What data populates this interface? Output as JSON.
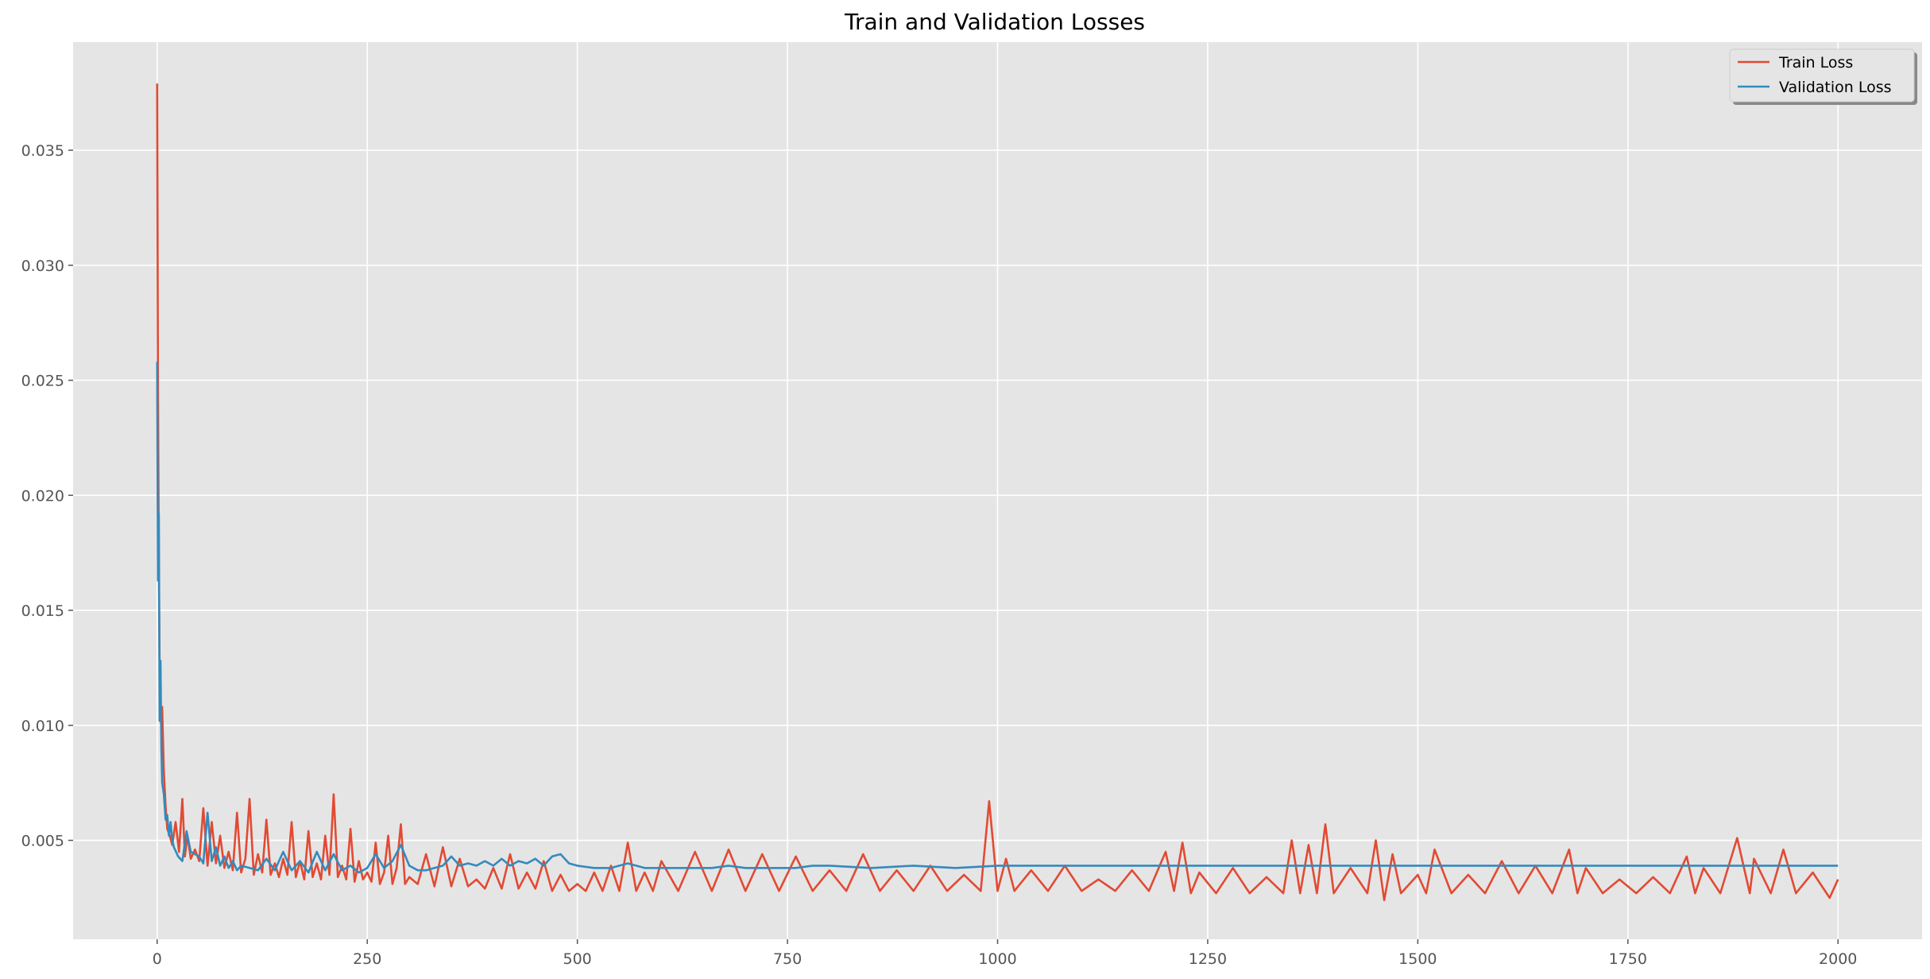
{
  "chart_data": {
    "type": "line",
    "title": "Train and Validation Losses",
    "xlabel": "",
    "ylabel": "",
    "xlim": [
      -100,
      2100
    ],
    "ylim": [
      0.0007,
      0.0397
    ],
    "x_ticks": [
      0,
      250,
      500,
      750,
      1000,
      1250,
      1500,
      1750,
      2000
    ],
    "x_tick_labels": [
      "0",
      "250",
      "500",
      "750",
      "1000",
      "1250",
      "1500",
      "1750",
      "2000"
    ],
    "y_ticks": [
      0.005,
      0.01,
      0.015,
      0.02,
      0.025,
      0.03,
      0.035
    ],
    "y_tick_labels": [
      "0.005",
      "0.010",
      "0.015",
      "0.020",
      "0.025",
      "0.030",
      "0.035"
    ],
    "grid": true,
    "legend_position": "top-right",
    "series": [
      {
        "name": "Train Loss",
        "color": "#E24A33",
        "x": [
          0,
          1,
          2,
          3,
          4,
          5,
          6,
          8,
          10,
          12,
          15,
          18,
          22,
          26,
          30,
          33,
          36,
          40,
          45,
          50,
          55,
          60,
          65,
          70,
          75,
          80,
          85,
          90,
          95,
          100,
          105,
          110,
          115,
          120,
          125,
          130,
          135,
          140,
          145,
          150,
          155,
          160,
          165,
          170,
          175,
          180,
          185,
          190,
          195,
          200,
          205,
          210,
          215,
          220,
          225,
          230,
          235,
          240,
          245,
          250,
          255,
          260,
          265,
          270,
          275,
          280,
          285,
          290,
          295,
          300,
          310,
          320,
          330,
          340,
          350,
          360,
          370,
          380,
          390,
          400,
          410,
          420,
          430,
          440,
          450,
          460,
          470,
          480,
          490,
          500,
          510,
          520,
          530,
          540,
          550,
          560,
          570,
          580,
          590,
          600,
          620,
          640,
          660,
          680,
          700,
          720,
          740,
          760,
          780,
          800,
          820,
          840,
          860,
          880,
          900,
          920,
          940,
          960,
          980,
          990,
          1000,
          1010,
          1020,
          1040,
          1060,
          1080,
          1100,
          1120,
          1140,
          1160,
          1180,
          1200,
          1210,
          1220,
          1230,
          1240,
          1260,
          1280,
          1300,
          1320,
          1340,
          1350,
          1360,
          1370,
          1380,
          1390,
          1400,
          1420,
          1440,
          1450,
          1460,
          1470,
          1480,
          1500,
          1510,
          1520,
          1540,
          1560,
          1580,
          1600,
          1620,
          1640,
          1660,
          1680,
          1690,
          1700,
          1720,
          1740,
          1760,
          1780,
          1800,
          1820,
          1830,
          1840,
          1860,
          1880,
          1895,
          1900,
          1920,
          1935,
          1950,
          1970,
          1990,
          2000
        ],
        "y": [
          0.0379,
          0.025,
          0.017,
          0.0125,
          0.0105,
          0.0098,
          0.0108,
          0.008,
          0.0065,
          0.0055,
          0.0052,
          0.0048,
          0.0058,
          0.0045,
          0.0068,
          0.0043,
          0.0052,
          0.0042,
          0.0046,
          0.0041,
          0.0064,
          0.0039,
          0.0058,
          0.004,
          0.0052,
          0.0038,
          0.0045,
          0.0037,
          0.0062,
          0.0036,
          0.0042,
          0.0068,
          0.0035,
          0.0044,
          0.0036,
          0.0059,
          0.0035,
          0.004,
          0.0034,
          0.0042,
          0.0035,
          0.0058,
          0.0034,
          0.0041,
          0.0033,
          0.0054,
          0.0034,
          0.004,
          0.0033,
          0.0052,
          0.0035,
          0.007,
          0.0034,
          0.0039,
          0.0033,
          0.0055,
          0.0032,
          0.0041,
          0.0033,
          0.0036,
          0.0032,
          0.0049,
          0.0031,
          0.0036,
          0.0052,
          0.0031,
          0.0038,
          0.0057,
          0.0031,
          0.0034,
          0.0031,
          0.0044,
          0.003,
          0.0047,
          0.003,
          0.0042,
          0.003,
          0.0033,
          0.0029,
          0.0038,
          0.0029,
          0.0044,
          0.0029,
          0.0036,
          0.0029,
          0.0041,
          0.0028,
          0.0035,
          0.0028,
          0.0031,
          0.0028,
          0.0036,
          0.0028,
          0.0039,
          0.0028,
          0.0049,
          0.0028,
          0.0036,
          0.0028,
          0.0041,
          0.0028,
          0.0045,
          0.0028,
          0.0046,
          0.0028,
          0.0044,
          0.0028,
          0.0043,
          0.0028,
          0.0037,
          0.0028,
          0.0044,
          0.0028,
          0.0037,
          0.0028,
          0.0039,
          0.0028,
          0.0035,
          0.0028,
          0.0067,
          0.0028,
          0.0042,
          0.0028,
          0.0037,
          0.0028,
          0.0039,
          0.0028,
          0.0033,
          0.0028,
          0.0037,
          0.0028,
          0.0045,
          0.0028,
          0.0049,
          0.0027,
          0.0036,
          0.0027,
          0.0038,
          0.0027,
          0.0034,
          0.0027,
          0.005,
          0.0027,
          0.0048,
          0.0027,
          0.0057,
          0.0027,
          0.0038,
          0.0027,
          0.005,
          0.0024,
          0.0044,
          0.0027,
          0.0035,
          0.0027,
          0.0046,
          0.0027,
          0.0035,
          0.0027,
          0.0041,
          0.0027,
          0.0039,
          0.0027,
          0.0046,
          0.0027,
          0.0038,
          0.0027,
          0.0033,
          0.0027,
          0.0034,
          0.0027,
          0.0043,
          0.0027,
          0.0038,
          0.0027,
          0.0051,
          0.0027,
          0.0042,
          0.0027,
          0.0046,
          0.0027,
          0.0036,
          0.0025,
          0.0033
        ]
      },
      {
        "name": "Validation Loss",
        "color": "#348ABD",
        "x": [
          0,
          1,
          2,
          3,
          4,
          5,
          6,
          8,
          10,
          12,
          14,
          16,
          18,
          20,
          25,
          30,
          35,
          40,
          45,
          50,
          55,
          60,
          65,
          70,
          75,
          80,
          85,
          90,
          95,
          100,
          110,
          120,
          130,
          140,
          150,
          160,
          170,
          180,
          190,
          200,
          210,
          220,
          230,
          240,
          250,
          260,
          270,
          280,
          290,
          300,
          310,
          320,
          330,
          340,
          350,
          360,
          370,
          380,
          390,
          400,
          410,
          420,
          430,
          440,
          450,
          460,
          470,
          480,
          490,
          500,
          520,
          540,
          560,
          580,
          600,
          620,
          640,
          660,
          680,
          700,
          720,
          740,
          760,
          780,
          800,
          850,
          900,
          950,
          1000,
          1050,
          1100,
          1150,
          1200,
          1250,
          1300,
          1350,
          1400,
          1450,
          1500,
          1550,
          1600,
          1650,
          1700,
          1750,
          1800,
          1850,
          1900,
          1950,
          2000
        ],
        "y": [
          0.0258,
          0.0163,
          0.0192,
          0.0102,
          0.0128,
          0.009,
          0.0075,
          0.007,
          0.0059,
          0.0061,
          0.0052,
          0.0058,
          0.005,
          0.0047,
          0.0043,
          0.0041,
          0.0054,
          0.0045,
          0.0044,
          0.0043,
          0.004,
          0.0062,
          0.0041,
          0.0047,
          0.0039,
          0.0043,
          0.0038,
          0.0041,
          0.0037,
          0.0039,
          0.0038,
          0.0037,
          0.0042,
          0.0037,
          0.0045,
          0.0037,
          0.0041,
          0.0036,
          0.0045,
          0.0037,
          0.0044,
          0.0037,
          0.0039,
          0.0036,
          0.0038,
          0.0044,
          0.0038,
          0.0041,
          0.0048,
          0.0039,
          0.0037,
          0.0037,
          0.0038,
          0.0039,
          0.0043,
          0.0039,
          0.004,
          0.0039,
          0.0041,
          0.0039,
          0.0042,
          0.0039,
          0.0041,
          0.004,
          0.0042,
          0.0039,
          0.0043,
          0.0044,
          0.004,
          0.0039,
          0.0038,
          0.0038,
          0.004,
          0.0038,
          0.0038,
          0.0038,
          0.0038,
          0.0038,
          0.0039,
          0.0038,
          0.0038,
          0.0038,
          0.0038,
          0.0039,
          0.0039,
          0.0038,
          0.0039,
          0.0038,
          0.0039,
          0.0039,
          0.0039,
          0.0039,
          0.0039,
          0.0039,
          0.0039,
          0.0039,
          0.0039,
          0.0039,
          0.0039,
          0.0039,
          0.0039,
          0.0039,
          0.0039,
          0.0039,
          0.0039,
          0.0039,
          0.0039,
          0.0039,
          0.0039
        ]
      }
    ]
  }
}
